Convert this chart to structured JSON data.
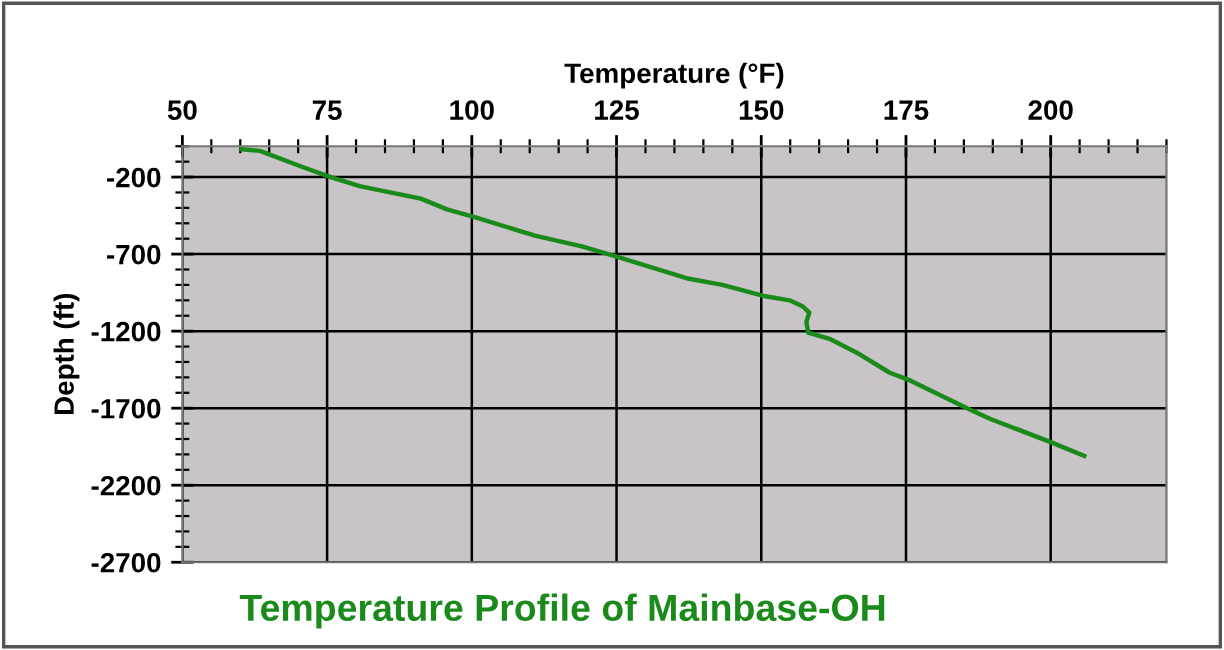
{
  "chart_data": {
    "type": "line",
    "title": "Temperature Profile of Mainbase-OH",
    "xlabel": "Temperature (°F)",
    "ylabel": "Depth (ft)",
    "xlim": [
      50,
      220
    ],
    "xticks": [
      50,
      75,
      100,
      125,
      150,
      175,
      200
    ],
    "ylim": [
      -2700,
      0
    ],
    "yticks": [
      -200,
      -700,
      -1200,
      -1700,
      -2200,
      -2700
    ],
    "grid": true,
    "marker": "none",
    "line_style": "solid",
    "series": [
      {
        "color": "#1a8a1a",
        "x": [
          60.2,
          63.4,
          70.4,
          75.6,
          80.8,
          91.2,
          95.7,
          100.5,
          110.9,
          119.0,
          125.3,
          137.5,
          143.3,
          150.2,
          154.9,
          157.2,
          158.3,
          157.8,
          158.1,
          161.8,
          166.5,
          172.2,
          175.7,
          186.1,
          189.6,
          200.0,
          205.8
        ],
        "values": [
          -20,
          -30,
          -130,
          -200,
          -260,
          -340,
          -410,
          -460,
          -580,
          -650,
          -720,
          -860,
          -900,
          -970,
          -1000,
          -1040,
          -1080,
          -1140,
          -1210,
          -1250,
          -1340,
          -1470,
          -1520,
          -1710,
          -1770,
          -1920,
          -2010
        ]
      }
    ]
  }
}
